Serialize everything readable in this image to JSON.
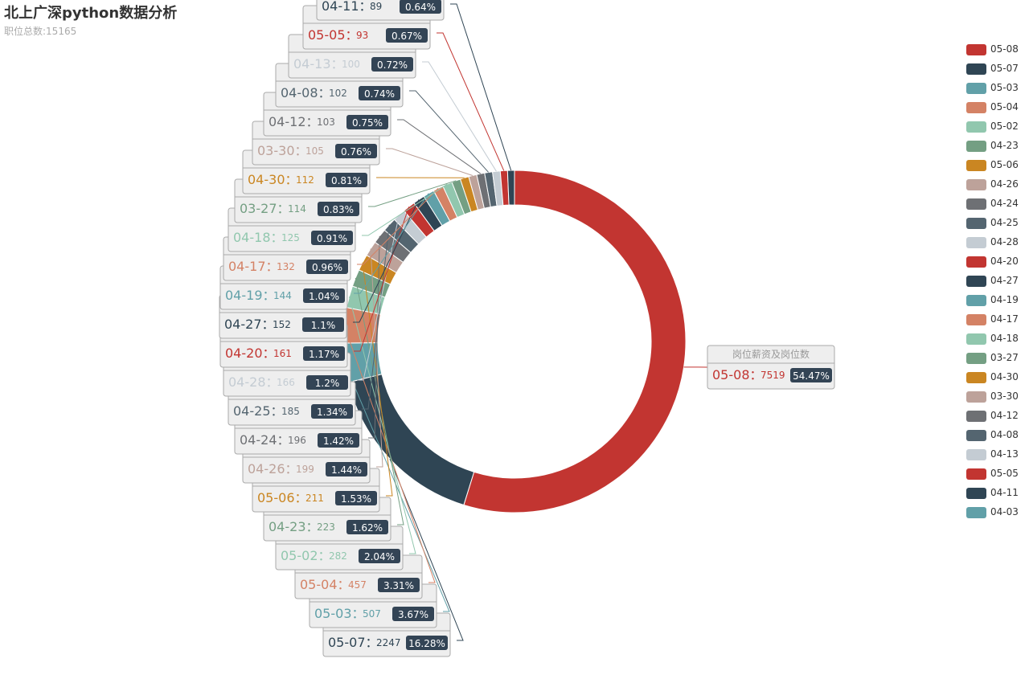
{
  "title": "北上广深python数据分析",
  "subtitle": "职位总数:15165",
  "series_name": "岗位薪资及岗位数",
  "chart_data": {
    "type": "pie",
    "variant": "donut",
    "series_name": "岗位薪资及岗位数",
    "legend_position": "right",
    "slices": [
      {
        "name": "05-08",
        "value": 7519,
        "percent": "54.47%",
        "color": "#c23531"
      },
      {
        "name": "05-07",
        "value": 2247,
        "percent": "16.28%",
        "color": "#2f4554"
      },
      {
        "name": "05-03",
        "value": 507,
        "percent": "3.67%",
        "color": "#61a0a8"
      },
      {
        "name": "05-04",
        "value": 457,
        "percent": "3.31%",
        "color": "#d48265"
      },
      {
        "name": "05-02",
        "value": 282,
        "percent": "2.04%",
        "color": "#91c7ae"
      },
      {
        "name": "04-23",
        "value": 223,
        "percent": "1.62%",
        "color": "#749f83"
      },
      {
        "name": "05-06",
        "value": 211,
        "percent": "1.53%",
        "color": "#ca8622"
      },
      {
        "name": "04-26",
        "value": 199,
        "percent": "1.44%",
        "color": "#bda29a"
      },
      {
        "name": "04-24",
        "value": 196,
        "percent": "1.42%",
        "color": "#6e7074"
      },
      {
        "name": "04-25",
        "value": 185,
        "percent": "1.34%",
        "color": "#546570"
      },
      {
        "name": "04-28",
        "value": 166,
        "percent": "1.2%",
        "color": "#c4ccd3"
      },
      {
        "name": "04-20",
        "value": 161,
        "percent": "1.17%",
        "color": "#c23531"
      },
      {
        "name": "04-27",
        "value": 152,
        "percent": "1.1%",
        "color": "#2f4554"
      },
      {
        "name": "04-19",
        "value": 144,
        "percent": "1.04%",
        "color": "#61a0a8"
      },
      {
        "name": "04-17",
        "value": 132,
        "percent": "0.96%",
        "color": "#d48265"
      },
      {
        "name": "04-18",
        "value": 125,
        "percent": "0.91%",
        "color": "#91c7ae"
      },
      {
        "name": "03-27",
        "value": 114,
        "percent": "0.83%",
        "color": "#749f83"
      },
      {
        "name": "04-30",
        "value": 112,
        "percent": "0.81%",
        "color": "#ca8622"
      },
      {
        "name": "03-30",
        "value": 105,
        "percent": "0.76%",
        "color": "#bda29a"
      },
      {
        "name": "04-12",
        "value": 103,
        "percent": "0.75%",
        "color": "#6e7074"
      },
      {
        "name": "04-08",
        "value": 102,
        "percent": "0.74%",
        "color": "#546570"
      },
      {
        "name": "04-13",
        "value": 100,
        "percent": "0.72%",
        "color": "#c4ccd3"
      },
      {
        "name": "05-05",
        "value": 93,
        "percent": "0.67%",
        "color": "#c23531"
      },
      {
        "name": "04-11",
        "value": 89,
        "percent": "0.64%",
        "color": "#2f4554"
      },
      {
        "name": "04-03",
        "value": 0,
        "percent": "",
        "color": "#61a0a8"
      }
    ]
  }
}
